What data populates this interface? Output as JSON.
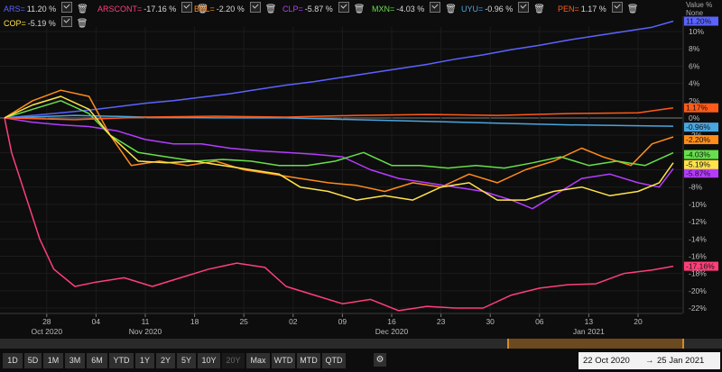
{
  "legend": [
    {
      "name": "ARS=",
      "value": "11.20 %",
      "color": "#5b63ff"
    },
    {
      "name": "ARSCONT=",
      "value": "-17.16 %",
      "color": "#ff3f7a"
    },
    {
      "name": "BRL=",
      "value": "-2.20 %",
      "color": "#ff8c1a"
    },
    {
      "name": "CLP=",
      "value": "-5.87 %",
      "color": "#b53cff"
    },
    {
      "name": "MXN=",
      "value": "-4.03 %",
      "color": "#66e04a"
    },
    {
      "name": "UYU=",
      "value": "-0.96 %",
      "color": "#49a6e0"
    },
    {
      "name": "PEN=",
      "value": "1.17 %",
      "color": "#ff5a1a"
    },
    {
      "name": "COP=",
      "value": "-5.19 %",
      "color": "#ffe34a"
    }
  ],
  "y_header": {
    "line1": "Value %",
    "line2": "None"
  },
  "chart_data": {
    "type": "line",
    "ylim": [
      -23,
      11.5
    ],
    "y_ticks": [
      10,
      8,
      6,
      4,
      2,
      0,
      -2,
      -4,
      -6,
      -8,
      -10,
      -12,
      -14,
      -16,
      -18,
      -20,
      -22
    ],
    "y_tick_labels": [
      "10%",
      "8%",
      "6%",
      "4%",
      "2%",
      "0%",
      "-2%",
      "-4%",
      "-6%",
      "-8%",
      "-10%",
      "-12%",
      "-14%",
      "-16%",
      "-18%",
      "-20%",
      "-22%"
    ],
    "x_ticks": [
      {
        "day": "28",
        "month": "Oct 2020",
        "date": "2020-10-28"
      },
      {
        "day": "04",
        "month": "",
        "date": "2020-11-04"
      },
      {
        "day": "11",
        "month": "Nov 2020",
        "date": "2020-11-11"
      },
      {
        "day": "18",
        "month": "",
        "date": "2020-11-18"
      },
      {
        "day": "25",
        "month": "",
        "date": "2020-11-25"
      },
      {
        "day": "02",
        "month": "",
        "date": "2020-12-02"
      },
      {
        "day": "09",
        "month": "",
        "date": "2020-12-09"
      },
      {
        "day": "16",
        "month": "Dec 2020",
        "date": "2020-12-16"
      },
      {
        "day": "23",
        "month": "",
        "date": "2020-12-23"
      },
      {
        "day": "30",
        "month": "",
        "date": "2020-12-30"
      },
      {
        "day": "06",
        "month": "",
        "date": "2021-01-06"
      },
      {
        "day": "13",
        "month": "Jan 2021",
        "date": "2021-01-13"
      },
      {
        "day": "20",
        "month": "",
        "date": "2021-01-20"
      }
    ],
    "series": [
      {
        "name": "ARS=",
        "color": "#5b63ff",
        "end_label": "11.20%",
        "points": [
          [
            "2020-10-22",
            0.0
          ],
          [
            "2020-10-26",
            0.3
          ],
          [
            "2020-10-30",
            0.6
          ],
          [
            "2020-11-03",
            0.9
          ],
          [
            "2020-11-07",
            1.3
          ],
          [
            "2020-11-11",
            1.7
          ],
          [
            "2020-11-15",
            2.0
          ],
          [
            "2020-11-19",
            2.4
          ],
          [
            "2020-11-23",
            2.8
          ],
          [
            "2020-11-27",
            3.3
          ],
          [
            "2020-12-01",
            3.8
          ],
          [
            "2020-12-05",
            4.2
          ],
          [
            "2020-12-09",
            4.7
          ],
          [
            "2020-12-13",
            5.2
          ],
          [
            "2020-12-17",
            5.7
          ],
          [
            "2020-12-21",
            6.2
          ],
          [
            "2020-12-25",
            6.8
          ],
          [
            "2020-12-29",
            7.3
          ],
          [
            "2021-01-02",
            7.9
          ],
          [
            "2021-01-06",
            8.4
          ],
          [
            "2021-01-10",
            9.0
          ],
          [
            "2021-01-14",
            9.5
          ],
          [
            "2021-01-18",
            10.0
          ],
          [
            "2021-01-22",
            10.5
          ],
          [
            "2021-01-25",
            11.2
          ]
        ]
      },
      {
        "name": "ARSCONT=",
        "color": "#ff3f7a",
        "end_label": "-17.16%",
        "points": [
          [
            "2020-10-22",
            0.0
          ],
          [
            "2020-10-23",
            -4.0
          ],
          [
            "2020-10-25",
            -9.0
          ],
          [
            "2020-10-27",
            -14.0
          ],
          [
            "2020-10-29",
            -17.5
          ],
          [
            "2020-11-01",
            -19.5
          ],
          [
            "2020-11-04",
            -19.0
          ],
          [
            "2020-11-08",
            -18.5
          ],
          [
            "2020-11-12",
            -19.5
          ],
          [
            "2020-11-16",
            -18.5
          ],
          [
            "2020-11-20",
            -17.5
          ],
          [
            "2020-11-24",
            -16.8
          ],
          [
            "2020-11-28",
            -17.3
          ],
          [
            "2020-12-01",
            -19.5
          ],
          [
            "2020-12-05",
            -20.5
          ],
          [
            "2020-12-09",
            -21.5
          ],
          [
            "2020-12-13",
            -21.0
          ],
          [
            "2020-12-17",
            -22.3
          ],
          [
            "2020-12-21",
            -21.8
          ],
          [
            "2020-12-25",
            -22.0
          ],
          [
            "2020-12-29",
            -22.0
          ],
          [
            "2021-01-02",
            -20.5
          ],
          [
            "2021-01-06",
            -19.7
          ],
          [
            "2021-01-10",
            -19.3
          ],
          [
            "2021-01-14",
            -19.2
          ],
          [
            "2021-01-18",
            -18.0
          ],
          [
            "2021-01-22",
            -17.6
          ],
          [
            "2021-01-25",
            -17.16
          ]
        ]
      },
      {
        "name": "BRL=",
        "color": "#ff8c1a",
        "end_label": "-2.20%",
        "points": [
          [
            "2020-10-22",
            0.0
          ],
          [
            "2020-10-26",
            2.0
          ],
          [
            "2020-10-30",
            3.2
          ],
          [
            "2020-11-03",
            2.5
          ],
          [
            "2020-11-06",
            -2.0
          ],
          [
            "2020-11-09",
            -5.5
          ],
          [
            "2020-11-13",
            -5.0
          ],
          [
            "2020-11-17",
            -5.5
          ],
          [
            "2020-11-21",
            -5.0
          ],
          [
            "2020-11-25",
            -6.0
          ],
          [
            "2020-11-29",
            -6.5
          ],
          [
            "2020-12-03",
            -7.0
          ],
          [
            "2020-12-07",
            -7.5
          ],
          [
            "2020-12-11",
            -7.8
          ],
          [
            "2020-12-15",
            -8.5
          ],
          [
            "2020-12-19",
            -7.5
          ],
          [
            "2020-12-23",
            -8.0
          ],
          [
            "2020-12-27",
            -6.5
          ],
          [
            "2020-12-31",
            -7.5
          ],
          [
            "2021-01-04",
            -6.0
          ],
          [
            "2021-01-08",
            -5.0
          ],
          [
            "2021-01-12",
            -3.5
          ],
          [
            "2021-01-15",
            -4.5
          ],
          [
            "2021-01-19",
            -5.5
          ],
          [
            "2021-01-22",
            -3.0
          ],
          [
            "2021-01-25",
            -2.2
          ]
        ]
      },
      {
        "name": "CLP=",
        "color": "#b53cff",
        "end_label": "-5.87%",
        "points": [
          [
            "2020-10-22",
            0.0
          ],
          [
            "2020-10-26",
            -0.5
          ],
          [
            "2020-10-30",
            -0.8
          ],
          [
            "2020-11-03",
            -1.0
          ],
          [
            "2020-11-07",
            -1.5
          ],
          [
            "2020-11-11",
            -2.5
          ],
          [
            "2020-11-15",
            -3.0
          ],
          [
            "2020-11-19",
            -3.0
          ],
          [
            "2020-11-23",
            -3.5
          ],
          [
            "2020-11-27",
            -3.8
          ],
          [
            "2020-12-01",
            -4.0
          ],
          [
            "2020-12-05",
            -4.2
          ],
          [
            "2020-12-09",
            -4.5
          ],
          [
            "2020-12-13",
            -6.0
          ],
          [
            "2020-12-17",
            -7.0
          ],
          [
            "2020-12-21",
            -7.5
          ],
          [
            "2020-12-25",
            -8.0
          ],
          [
            "2020-12-29",
            -8.5
          ],
          [
            "2021-01-02",
            -9.5
          ],
          [
            "2021-01-05",
            -10.5
          ],
          [
            "2021-01-08",
            -9.0
          ],
          [
            "2021-01-12",
            -7.0
          ],
          [
            "2021-01-16",
            -6.5
          ],
          [
            "2021-01-20",
            -7.5
          ],
          [
            "2021-01-23",
            -8.0
          ],
          [
            "2021-01-25",
            -5.87
          ]
        ]
      },
      {
        "name": "MXN=",
        "color": "#66e04a",
        "end_label": "-4.03%",
        "points": [
          [
            "2020-10-22",
            0.0
          ],
          [
            "2020-10-26",
            1.0
          ],
          [
            "2020-10-30",
            2.0
          ],
          [
            "2020-11-03",
            0.5
          ],
          [
            "2020-11-06",
            -2.0
          ],
          [
            "2020-11-10",
            -4.0
          ],
          [
            "2020-11-14",
            -4.5
          ],
          [
            "2020-11-18",
            -5.0
          ],
          [
            "2020-11-22",
            -4.8
          ],
          [
            "2020-11-26",
            -5.0
          ],
          [
            "2020-11-30",
            -5.5
          ],
          [
            "2020-12-04",
            -5.5
          ],
          [
            "2020-12-08",
            -5.0
          ],
          [
            "2020-12-12",
            -4.0
          ],
          [
            "2020-12-16",
            -5.5
          ],
          [
            "2020-12-20",
            -5.5
          ],
          [
            "2020-12-24",
            -5.8
          ],
          [
            "2020-12-28",
            -5.5
          ],
          [
            "2021-01-01",
            -5.8
          ],
          [
            "2021-01-05",
            -5.2
          ],
          [
            "2021-01-09",
            -4.5
          ],
          [
            "2021-01-13",
            -5.5
          ],
          [
            "2021-01-17",
            -5.0
          ],
          [
            "2021-01-21",
            -5.5
          ],
          [
            "2021-01-25",
            -4.03
          ]
        ]
      },
      {
        "name": "UYU=",
        "color": "#49a6e0",
        "end_label": "-0.96%",
        "points": [
          [
            "2020-10-22",
            0.0
          ],
          [
            "2020-11-01",
            0.3
          ],
          [
            "2020-11-11",
            0.1
          ],
          [
            "2020-11-21",
            0.0
          ],
          [
            "2020-12-01",
            0.0
          ],
          [
            "2020-12-11",
            -0.2
          ],
          [
            "2020-12-21",
            -0.4
          ],
          [
            "2020-12-31",
            -0.6
          ],
          [
            "2021-01-10",
            -0.8
          ],
          [
            "2021-01-20",
            -0.9
          ],
          [
            "2021-01-25",
            -0.96
          ]
        ]
      },
      {
        "name": "PEN=",
        "color": "#ff5a1a",
        "end_label": "1.17%",
        "points": [
          [
            "2020-10-22",
            0.0
          ],
          [
            "2020-11-01",
            -0.2
          ],
          [
            "2020-11-11",
            0.1
          ],
          [
            "2020-11-21",
            0.2
          ],
          [
            "2020-12-01",
            0.1
          ],
          [
            "2020-12-11",
            0.3
          ],
          [
            "2020-12-21",
            0.4
          ],
          [
            "2020-12-31",
            0.3
          ],
          [
            "2021-01-10",
            0.5
          ],
          [
            "2021-01-20",
            0.6
          ],
          [
            "2021-01-25",
            1.17
          ]
        ]
      },
      {
        "name": "COP=",
        "color": "#ffe34a",
        "end_label": "-5.19%",
        "points": [
          [
            "2020-10-22",
            0.0
          ],
          [
            "2020-10-26",
            1.5
          ],
          [
            "2020-10-30",
            2.5
          ],
          [
            "2020-11-03",
            1.0
          ],
          [
            "2020-11-06",
            -2.0
          ],
          [
            "2020-11-10",
            -5.0
          ],
          [
            "2020-11-14",
            -5.2
          ],
          [
            "2020-11-18",
            -5.0
          ],
          [
            "2020-11-22",
            -5.5
          ],
          [
            "2020-11-26",
            -6.0
          ],
          [
            "2020-11-30",
            -6.5
          ],
          [
            "2020-12-03",
            -8.0
          ],
          [
            "2020-12-07",
            -8.5
          ],
          [
            "2020-12-11",
            -9.5
          ],
          [
            "2020-12-15",
            -9.0
          ],
          [
            "2020-12-19",
            -9.5
          ],
          [
            "2020-12-23",
            -8.0
          ],
          [
            "2020-12-27",
            -7.5
          ],
          [
            "2020-12-31",
            -9.5
          ],
          [
            "2021-01-04",
            -9.5
          ],
          [
            "2021-01-08",
            -8.5
          ],
          [
            "2021-01-12",
            -8.0
          ],
          [
            "2021-01-16",
            -9.0
          ],
          [
            "2021-01-20",
            -8.5
          ],
          [
            "2021-01-23",
            -7.5
          ],
          [
            "2021-01-25",
            -5.19
          ]
        ]
      }
    ]
  },
  "toolbar": {
    "buttons": [
      "1D",
      "5D",
      "1M",
      "3M",
      "6M",
      "YTD",
      "1Y",
      "2Y",
      "5Y",
      "10Y",
      "20Y",
      "Max",
      "WTD",
      "MTD",
      "QTD"
    ],
    "disabled": [
      "20Y"
    ]
  },
  "date_range": {
    "from": "22 Oct 2020",
    "sep": "→",
    "to": "25 Jan 2021"
  }
}
